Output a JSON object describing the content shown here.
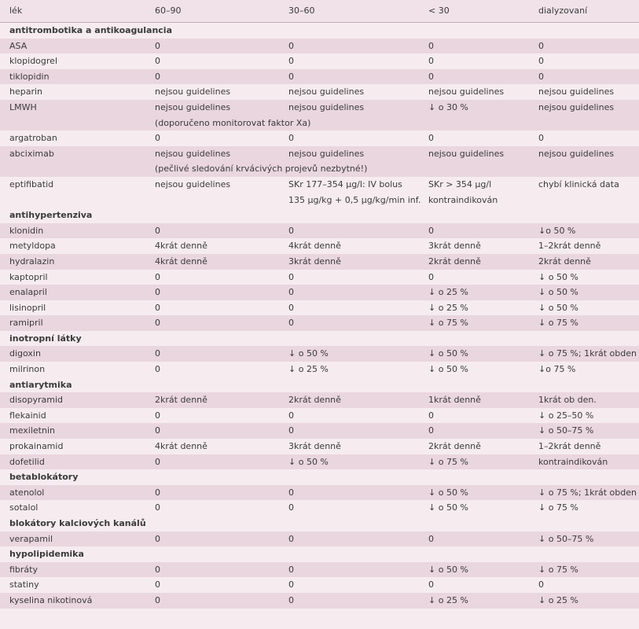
{
  "table": {
    "header": [
      "lék",
      "60–90",
      "30–60",
      "< 30",
      "dialyzovaní"
    ],
    "sections": [
      {
        "title": "antitrombotika a antikoagulancia",
        "rows": [
          [
            "ASA",
            "0",
            "0",
            "0",
            "0"
          ],
          [
            "klopidogrel",
            "0",
            "0",
            "0",
            "0"
          ],
          [
            "tiklopidin",
            "0",
            "0",
            "0",
            "0"
          ],
          [
            "heparin",
            "nejsou guidelines",
            "nejsou guidelines",
            "nejsou guidelines",
            "nejsou guidelines"
          ],
          [
            "LMWH",
            [
              "nejsou guidelines",
              "(doporučeno monitorovat faktor Xa)"
            ],
            "nejsou guidelines",
            "↓ o 30 %",
            "nejsou guidelines"
          ],
          [
            "argatroban",
            "0",
            "0",
            "0",
            "0"
          ],
          [
            "abciximab",
            [
              "nejsou guidelines",
              "(pečlivé sledování krvácivých projevů nezbytné!)"
            ],
            "nejsou guidelines",
            "nejsou guidelines",
            "nejsou guidelines"
          ],
          [
            "eptifibatid",
            "nejsou guidelines",
            [
              "SKr 177–354 μg/l: IV bolus",
              "135 μg/kg + 0,5 μg/kg/min inf."
            ],
            [
              "SKr > 354 μg/l",
              "kontraindikován"
            ],
            "chybí klinická data"
          ]
        ]
      },
      {
        "title": "antihypertenziva",
        "rows": [
          [
            "klonidin",
            "0",
            "0",
            "0",
            "↓o 50 %"
          ],
          [
            "metyldopa",
            "4krát denně",
            "4krát denně",
            "3krát denně",
            "1–2krát denně"
          ],
          [
            "hydralazin",
            "4krát denně",
            "3krát denně",
            "2krát denně",
            "2krát denně"
          ],
          [
            "kaptopril",
            "0",
            "0",
            "0",
            "↓ o 50 %"
          ],
          [
            "enalapril",
            "0",
            "0",
            "↓ o 25 %",
            "↓ o 50 %"
          ],
          [
            "lisinopril",
            "0",
            "0",
            "↓ o 25 %",
            "↓ o 50 %"
          ],
          [
            "ramipril",
            "0",
            "0",
            "↓ o 75 %",
            "↓ o 75 %"
          ]
        ]
      },
      {
        "title": "inotropní látky",
        "rows": [
          [
            "digoxin",
            "0",
            "↓ o 50 %",
            "↓ o 50 %",
            "↓ o 75 %; 1krát obden"
          ],
          [
            "milrinon",
            "0",
            "↓ o 25 %",
            "↓ o 50 %",
            "↓o 75 %"
          ]
        ]
      },
      {
        "title": "antiarytmika",
        "rows": [
          [
            "disopyramid",
            "2krát denně",
            "2krát denně",
            "1krát denně",
            "1krát ob den."
          ],
          [
            "flekainid",
            "0",
            "0",
            "0",
            "↓ o 25–50 %"
          ],
          [
            "mexiletnin",
            "0",
            "0",
            "0",
            "↓ o 50–75 %"
          ],
          [
            "prokainamid",
            "4krát denně",
            "3krát denně",
            "2krát denně",
            "1–2krát denně"
          ],
          [
            "dofetilid",
            "0",
            "↓ o 50 %",
            "↓ o 75 %",
            "kontraindikován"
          ]
        ]
      },
      {
        "title": "betablokátory",
        "rows": [
          [
            "atenolol",
            "0",
            "0",
            "↓ o 50 %",
            "↓ o 75 %; 1krát obden"
          ],
          [
            "sotalol",
            "0",
            "0",
            "↓ o 50 %",
            "↓ o 75 %"
          ]
        ]
      },
      {
        "title": "blokátory kalciových kanálů",
        "rows": [
          [
            "verapamil",
            "0",
            "0",
            "0",
            "↓ o 50–75 %"
          ]
        ]
      },
      {
        "title": "hypolipidemika",
        "rows": [
          [
            "fibráty",
            "0",
            "0",
            "↓ o 50 %",
            "↓ o 75 %"
          ],
          [
            "statiny",
            "0",
            "0",
            "0",
            "0"
          ],
          [
            "kyselina nikotinová",
            "0",
            "0",
            "↓ o 25 %",
            "↓ o 25 %"
          ]
        ]
      }
    ]
  }
}
